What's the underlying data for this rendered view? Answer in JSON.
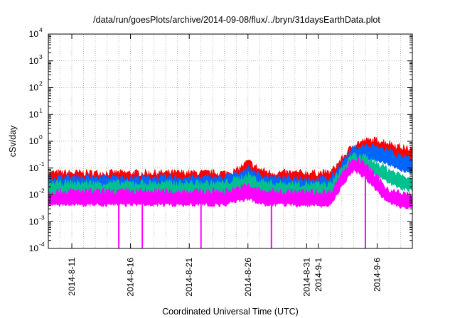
{
  "chart_data": {
    "type": "line",
    "title": "/data/run/goesPlots/archive/2014-09-08/flux/../bryn/31daysEarthData.plot",
    "xlabel": "Coordinated Universal Time (UTC)",
    "ylabel": "cSv/day",
    "x_range": [
      "2014-08-09",
      "2014-09-09"
    ],
    "x_tick_labels": [
      "2014-8-11",
      "2014-8-16",
      "2014-8-21",
      "2014-8-26",
      "2014-8-31",
      "2014-9-1",
      "2014-9-6"
    ],
    "y_scale": "log",
    "ylim": [
      0.0001,
      10000
    ],
    "y_tick_labels": [
      {
        "base": "10",
        "exp": "-4",
        "value": 0.0001
      },
      {
        "base": "10",
        "exp": "-3",
        "value": 0.001
      },
      {
        "base": "10",
        "exp": "-2",
        "value": 0.01
      },
      {
        "base": "10",
        "exp": "-1",
        "value": 0.1
      },
      {
        "base": "10",
        "exp": "0",
        "value": 1
      },
      {
        "base": "10",
        "exp": "1",
        "value": 10
      },
      {
        "base": "10",
        "exp": "2",
        "value": 100
      },
      {
        "base": "10",
        "exp": "3",
        "value": 1000
      },
      {
        "base": "10",
        "exp": "4",
        "value": 10000
      }
    ],
    "grid": true,
    "legend": "none",
    "series": [
      {
        "color": "#ff0000",
        "points": [
          [
            "2014-08-09",
            0.06
          ],
          [
            "2014-08-14",
            0.06
          ],
          [
            "2014-08-19",
            0.06
          ],
          [
            "2014-08-24",
            0.06
          ],
          [
            "2014-08-25",
            0.07
          ],
          [
            "2014-08-26",
            0.16
          ],
          [
            "2014-08-27",
            0.08
          ],
          [
            "2014-08-28",
            0.06
          ],
          [
            "2014-09-02",
            0.06
          ],
          [
            "2014-09-03",
            0.2
          ],
          [
            "2014-09-04",
            0.7
          ],
          [
            "2014-09-05",
            0.95
          ],
          [
            "2014-09-06",
            1.0
          ],
          [
            "2014-09-07",
            0.8
          ],
          [
            "2014-09-08",
            0.55
          ],
          [
            "2014-09-09",
            0.42
          ]
        ]
      },
      {
        "color": "#0066ff",
        "points": [
          [
            "2014-08-09",
            0.04
          ],
          [
            "2014-08-14",
            0.04
          ],
          [
            "2014-08-19",
            0.04
          ],
          [
            "2014-08-24",
            0.04
          ],
          [
            "2014-08-26",
            0.09
          ],
          [
            "2014-08-27",
            0.05
          ],
          [
            "2014-08-28",
            0.04
          ],
          [
            "2014-09-02",
            0.035
          ],
          [
            "2014-09-03",
            0.14
          ],
          [
            "2014-09-04",
            0.5
          ],
          [
            "2014-09-05",
            0.6
          ],
          [
            "2014-09-06",
            0.55
          ],
          [
            "2014-09-07",
            0.4
          ],
          [
            "2014-09-08",
            0.25
          ],
          [
            "2014-09-09",
            0.18
          ]
        ]
      },
      {
        "color": "#00c090",
        "points": [
          [
            "2014-08-09",
            0.025
          ],
          [
            "2014-08-14",
            0.025
          ],
          [
            "2014-08-19",
            0.025
          ],
          [
            "2014-08-24",
            0.025
          ],
          [
            "2014-08-26",
            0.05
          ],
          [
            "2014-08-27",
            0.03
          ],
          [
            "2014-08-28",
            0.025
          ],
          [
            "2014-09-02",
            0.022
          ],
          [
            "2014-09-03",
            0.09
          ],
          [
            "2014-09-04",
            0.28
          ],
          [
            "2014-09-05",
            0.22
          ],
          [
            "2014-09-06",
            0.14
          ],
          [
            "2014-09-07",
            0.08
          ],
          [
            "2014-09-08",
            0.05
          ],
          [
            "2014-09-09",
            0.04
          ]
        ]
      },
      {
        "color": "#ff00ff",
        "points": [
          [
            "2014-08-09",
            0.012
          ],
          [
            "2014-08-14",
            0.012
          ],
          [
            "2014-08-19",
            0.012
          ],
          [
            "2014-08-24",
            0.012
          ],
          [
            "2014-08-26",
            0.02
          ],
          [
            "2014-08-27",
            0.013
          ],
          [
            "2014-08-28",
            0.012
          ],
          [
            "2014-09-02",
            0.011
          ],
          [
            "2014-09-03",
            0.06
          ],
          [
            "2014-09-04",
            0.22
          ],
          [
            "2014-09-05",
            0.12
          ],
          [
            "2014-09-06",
            0.04
          ],
          [
            "2014-09-07",
            0.014
          ],
          [
            "2014-09-08",
            0.01
          ],
          [
            "2014-09-09",
            0.009
          ]
        ],
        "dropouts": [
          "2014-08-15",
          "2014-08-17",
          "2014-08-22",
          "2014-08-28",
          "2014-09-05"
        ]
      }
    ]
  }
}
